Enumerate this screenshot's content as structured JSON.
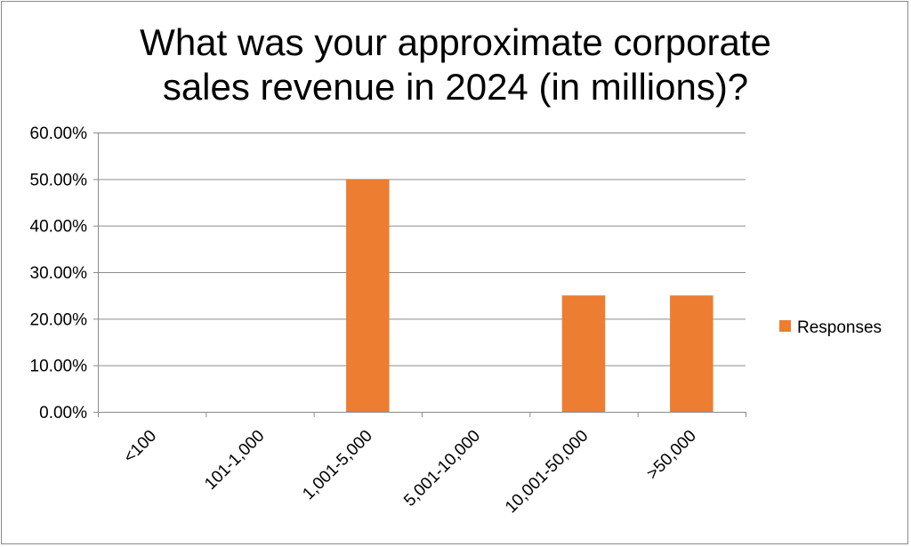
{
  "chart_data": {
    "type": "bar",
    "title_lines": [
      "What was your approximate corporate",
      "sales revenue in 2024 (in millions)?"
    ],
    "categories": [
      "<100",
      "101-1,000",
      "1,001-5,000",
      "5,001-10,000",
      "10,001-50,000",
      ">50,000"
    ],
    "series": [
      {
        "name": "Responses",
        "values": [
          0,
          0,
          50,
          0,
          25,
          25
        ]
      }
    ],
    "ylim": [
      0,
      60
    ],
    "yticks": [
      0,
      10,
      20,
      30,
      40,
      50,
      60
    ],
    "ytick_labels": [
      "0.00%",
      "10.00%",
      "20.00%",
      "30.00%",
      "40.00%",
      "50.00%",
      "60.00%"
    ],
    "xlabel": "",
    "ylabel": "",
    "grid": true,
    "legend_position": "right",
    "colors": {
      "bar": "#ED7D31",
      "grid": "#8C8C8C",
      "axis": "#8C8C8C"
    }
  }
}
